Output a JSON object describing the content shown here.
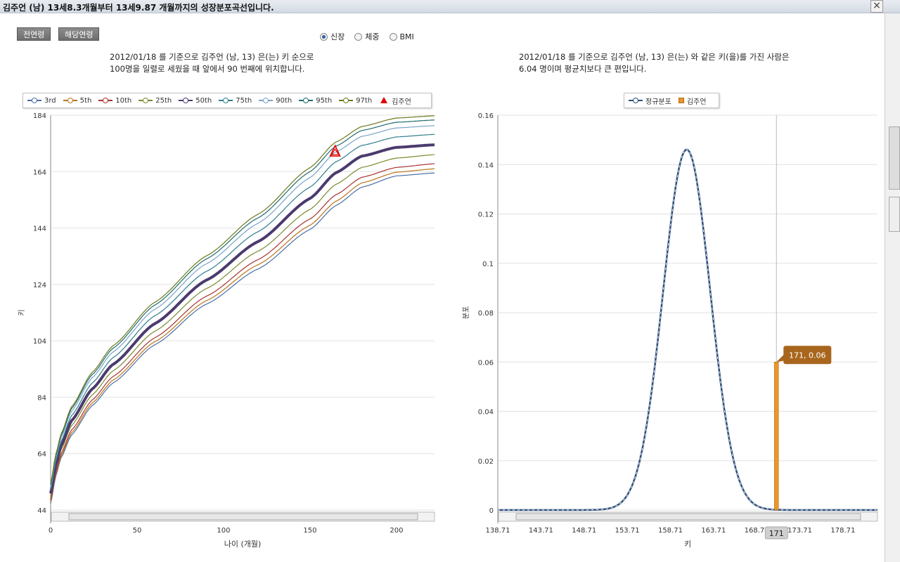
{
  "window": {
    "title": "김주언 (남) 13세8.3개월부터 13세9.87 개월까지의 성장분포곡선입니다."
  },
  "toolbar": {
    "all_ages_label": "전연령",
    "current_age_label": "해당연령",
    "radios": [
      {
        "label": "신장",
        "selected": true
      },
      {
        "label": "체중",
        "selected": false
      },
      {
        "label": "BMI",
        "selected": false
      }
    ]
  },
  "left": {
    "desc_line1": "2012/01/18 를 기준으로 김주언 (남, 13) 은(는) 키 순으로",
    "desc_line2": "100명을 일렬로 세웠을 때 앞에서 90 번째에 위치합니다."
  },
  "right": {
    "desc_line1": "2012/01/18 를 기준으로 김주언 (남, 13) 은(는) 와 같은 키(을)를 가진 사람은",
    "desc_line2": "6.04 명이며 평균치보다 큰 편입니다."
  },
  "chart_data": [
    {
      "type": "line",
      "title": "",
      "xlabel": "나이 (개월)",
      "ylabel": "키",
      "xlim": [
        0,
        222
      ],
      "ylim": [
        44,
        184
      ],
      "xticks": [
        0,
        50,
        100,
        150,
        200
      ],
      "yticks": [
        44,
        64,
        84,
        104,
        124,
        144,
        164,
        184
      ],
      "x": [
        0,
        3,
        6,
        12,
        24,
        36,
        60,
        90,
        120,
        150,
        165,
        180,
        200,
        222
      ],
      "series": [
        {
          "name": "3rd",
          "color": "#4a6fa5",
          "values": [
            46.3,
            56.0,
            62.5,
            70.5,
            81.0,
            89.0,
            102.5,
            117.0,
            129.5,
            143.5,
            152.0,
            158.5,
            162.5,
            163.5
          ]
        },
        {
          "name": "5th",
          "color": "#b8741a",
          "values": [
            46.8,
            56.7,
            63.2,
            71.3,
            81.9,
            90.0,
            103.6,
            118.2,
            131.0,
            145.0,
            153.5,
            160.0,
            163.8,
            165.0
          ]
        },
        {
          "name": "10th",
          "color": "#a83232",
          "values": [
            47.5,
            57.5,
            64.0,
            72.3,
            83.0,
            91.3,
            105.0,
            119.8,
            132.8,
            147.2,
            155.8,
            162.0,
            165.5,
            166.8
          ]
        },
        {
          "name": "25th",
          "color": "#7a8a2e",
          "values": [
            48.5,
            58.7,
            65.3,
            73.9,
            84.8,
            93.3,
            107.3,
            122.5,
            135.8,
            150.6,
            159.5,
            165.5,
            168.8,
            170.0
          ]
        },
        {
          "name": "50th",
          "color": "#4b3a6e",
          "values": [
            49.9,
            60.0,
            66.8,
            75.6,
            86.9,
            95.6,
            110.0,
            125.5,
            139.2,
            154.5,
            163.6,
            169.5,
            172.6,
            173.5
          ]
        },
        {
          "name": "75th",
          "color": "#2f7d8c",
          "values": [
            51.1,
            61.4,
            68.3,
            77.4,
            89.0,
            98.0,
            112.8,
            128.6,
            142.7,
            158.5,
            167.5,
            173.3,
            176.3,
            177.2
          ]
        },
        {
          "name": "90th",
          "color": "#7aa3c8",
          "values": [
            52.2,
            62.6,
            69.6,
            78.9,
            90.9,
            100.0,
            115.1,
            131.3,
            145.7,
            161.9,
            171.0,
            176.5,
            179.5,
            180.3
          ]
        },
        {
          "name": "95th",
          "color": "#1f6b6b",
          "values": [
            52.9,
            63.3,
            70.4,
            79.9,
            92.0,
            101.3,
            116.6,
            133.0,
            147.6,
            164.0,
            173.0,
            178.6,
            181.5,
            182.3
          ]
        },
        {
          "name": "97th",
          "color": "#6b7a1a",
          "values": [
            53.4,
            63.8,
            70.9,
            80.5,
            92.8,
            102.2,
            117.6,
            134.1,
            148.9,
            165.4,
            174.5,
            180.0,
            183.0,
            183.8
          ]
        }
      ],
      "marker": {
        "name": "김주언",
        "x": 164.5,
        "y": 171
      },
      "legend_position": "top"
    },
    {
      "type": "line",
      "title": "",
      "xlabel": "키",
      "ylabel": "분포",
      "xlim": [
        138.71,
        182.71
      ],
      "ylim": [
        0,
        0.16
      ],
      "xticks": [
        138.71,
        143.71,
        148.71,
        153.71,
        158.71,
        163.71,
        168.71,
        173.71,
        178.71
      ],
      "yticks": [
        0,
        0.02,
        0.04,
        0.06,
        0.08,
        0.1,
        0.12,
        0.14,
        0.16
      ],
      "series": [
        {
          "name": "정규분포",
          "color": "#2d4f7c",
          "mean": 160.6,
          "sd": 2.73
        }
      ],
      "highlight": {
        "name": "김주언",
        "x": 171,
        "y": 0.06,
        "label": "171, 0.06",
        "axis_label": "171"
      },
      "legend_position": "top"
    }
  ]
}
